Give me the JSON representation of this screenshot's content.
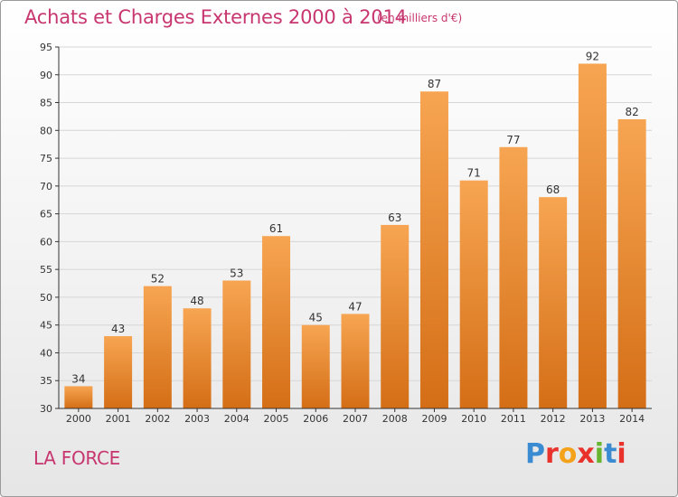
{
  "header": {
    "title": "Achats et Charges Externes 2000 à 2014",
    "subtitle": "(en milliers d'€)"
  },
  "footer": {
    "place": "LA FORCE",
    "logo": "Proxiti",
    "logo_colors": [
      "#3a8bd1",
      "#e8322b",
      "#f5a21b",
      "#e8322b",
      "#67b42e",
      "#3a8bd1",
      "#e8322b"
    ]
  },
  "colors": {
    "title": "#c8366f",
    "bar_top": "#f7a552",
    "bar_bottom": "#d46e16",
    "grid": "#d6d6d6",
    "axis": "#333333"
  },
  "chart_data": {
    "type": "bar",
    "categories": [
      "2000",
      "2001",
      "2002",
      "2003",
      "2004",
      "2005",
      "2006",
      "2007",
      "2008",
      "2009",
      "2010",
      "2011",
      "2012",
      "2013",
      "2014"
    ],
    "values": [
      34,
      43,
      52,
      48,
      53,
      61,
      45,
      47,
      63,
      87,
      71,
      77,
      68,
      92,
      82
    ],
    "title": "Achats et Charges Externes 2000 à 2014",
    "subtitle": "(en milliers d'€)",
    "xlabel": "",
    "ylabel": "",
    "ylim": [
      30,
      95
    ],
    "yticks": [
      30,
      35,
      40,
      45,
      50,
      55,
      60,
      65,
      70,
      75,
      80,
      85,
      90,
      95
    ],
    "grid": true,
    "data_labels": true
  }
}
